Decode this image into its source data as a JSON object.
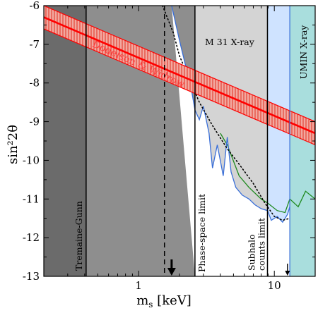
{
  "chart_data": {
    "type": "exclusion-plot",
    "xlabel": "m_s [keV]",
    "ylabel": "sin²2θ",
    "xscale": "log",
    "xlim": [
      0.2,
      20
    ],
    "ylim": [
      -13,
      -6
    ],
    "x_ticks": [
      {
        "value": 1,
        "label": "1"
      },
      {
        "value": 10,
        "label": "10"
      }
    ],
    "y_ticks": [
      -6,
      -7,
      -8,
      -9,
      -10,
      -11,
      -12,
      -13
    ],
    "colors": {
      "tremaine_gunn": "#6b6b6b",
      "phase_space": "#8e8e8e",
      "subhalo": "#d4d4d4",
      "m31": "#cfe3ff",
      "umin": "#a9dedd",
      "band_fill": "#f2a8a0",
      "band_line": "#ff0000",
      "m31_line": "#3a6fd8",
      "green_line": "#1f8a1f"
    },
    "regions": [
      {
        "name": "Tremaine-Gunn",
        "x_max": 0.41
      },
      {
        "name": "Phase-space limit",
        "x_max": 2.6
      },
      {
        "name": "Subhalo counts limit",
        "x_max": 8.9
      },
      {
        "name": "M 31 X-ray"
      },
      {
        "name": "UMIN X-ray",
        "x_min": 13
      }
    ],
    "band": {
      "label": "Dodelson & Widrow",
      "center": [
        [
          0.2,
          -6.3
        ],
        [
          20,
          -9.3
        ]
      ],
      "half_width": 0.3
    },
    "dashed_line_x": 1.55,
    "arrows": [
      {
        "x": 1.75,
        "size": "large"
      },
      {
        "x": 12.5,
        "size": "small"
      }
    ],
    "m31_limit_curve": [
      [
        1.75,
        -6.0
      ],
      [
        2.0,
        -6.9
      ],
      [
        2.2,
        -7.5
      ],
      [
        2.4,
        -8.0
      ],
      [
        2.6,
        -8.7
      ],
      [
        2.8,
        -8.95
      ],
      [
        3.0,
        -8.6
      ],
      [
        3.3,
        -9.3
      ],
      [
        3.5,
        -10.2
      ],
      [
        3.8,
        -9.6
      ],
      [
        4.2,
        -10.4
      ],
      [
        4.5,
        -9.4
      ],
      [
        4.8,
        -10.3
      ],
      [
        5.2,
        -10.7
      ],
      [
        5.8,
        -10.9
      ],
      [
        6.5,
        -11.0
      ],
      [
        7.2,
        -11.15
      ],
      [
        8.0,
        -11.25
      ],
      [
        8.9,
        -11.3
      ],
      [
        9.5,
        -11.55
      ],
      [
        10.5,
        -11.45
      ],
      [
        11.5,
        -11.6
      ],
      [
        12.5,
        -11.4
      ],
      [
        13.0,
        -11.2
      ]
    ],
    "green_curve": [
      [
        4.0,
        -9.3
      ],
      [
        4.5,
        -9.6
      ],
      [
        5.5,
        -10.4
      ],
      [
        6.5,
        -10.7
      ],
      [
        8.0,
        -11.0
      ],
      [
        8.9,
        -11.1
      ],
      [
        10.5,
        -11.3
      ],
      [
        12.0,
        -11.35
      ],
      [
        13.0,
        -11.0
      ],
      [
        15.0,
        -11.2
      ],
      [
        17.0,
        -10.8
      ],
      [
        20.0,
        -11.0
      ]
    ],
    "dotted_curve": [
      [
        1.5,
        -6.0
      ],
      [
        1.8,
        -6.7
      ],
      [
        2.0,
        -7.3
      ],
      [
        2.3,
        -7.8
      ],
      [
        2.8,
        -8.5
      ],
      [
        3.5,
        -9.1
      ],
      [
        4.5,
        -9.7
      ],
      [
        5.5,
        -10.1
      ],
      [
        7.0,
        -10.6
      ],
      [
        8.5,
        -11.1
      ],
      [
        10.0,
        -11.45
      ],
      [
        11.5,
        -11.55
      ],
      [
        13.0,
        -11.5
      ]
    ]
  }
}
